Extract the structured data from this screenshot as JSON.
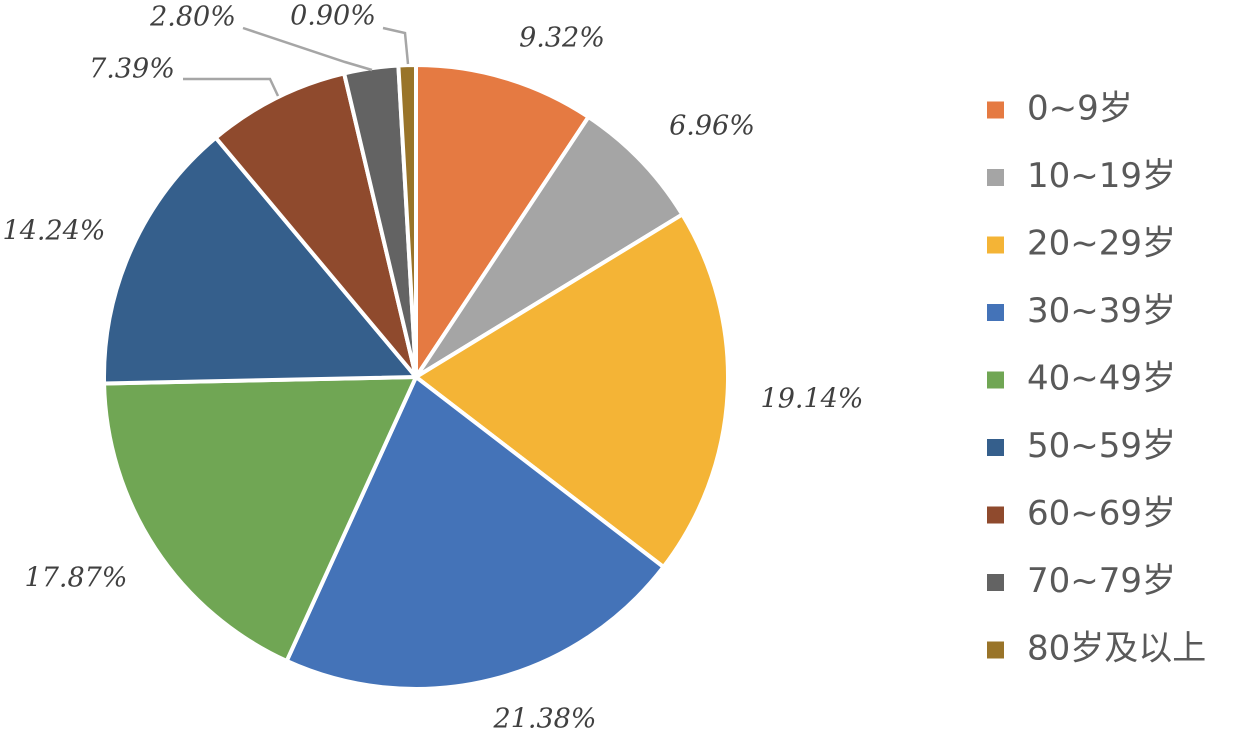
{
  "chart_data": {
    "type": "pie",
    "title": "",
    "legend_position": "right",
    "categories": [
      "0~9岁",
      "10~19岁",
      "20~29岁",
      "30~39岁",
      "40~49岁",
      "50~59岁",
      "60~69岁",
      "70~79岁",
      "80岁及以上"
    ],
    "values": [
      9.32,
      6.96,
      19.14,
      21.38,
      17.87,
      14.24,
      7.39,
      2.8,
      0.9
    ],
    "data_labels": [
      "9.32%",
      "6.96%",
      "19.14%",
      "21.38%",
      "17.87%",
      "14.24%",
      "7.39%",
      "2.80%",
      "0.90%"
    ],
    "colors": [
      "#E57A42",
      "#A5A5A5",
      "#F4B436",
      "#4473B8",
      "#70A654",
      "#355F8C",
      "#8F4A2D",
      "#636363",
      "#997429"
    ],
    "leader_line_color": "#A6A6A6"
  }
}
